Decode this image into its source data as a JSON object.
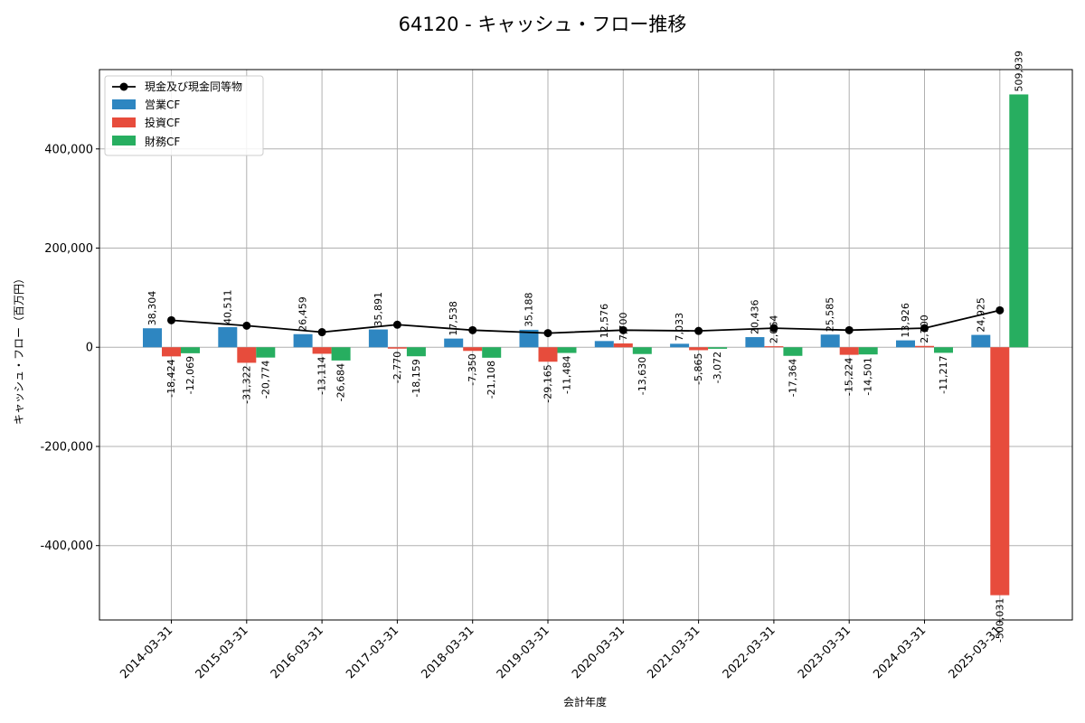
{
  "chart_data": {
    "type": "bar",
    "title": "64120 - キャッシュ・フロー推移",
    "xlabel": "会計年度",
    "ylabel": "キャッシュ・フロー（百万円）",
    "ylim": [
      -550000,
      560000
    ],
    "yticks": [
      -400000,
      -200000,
      0,
      200000,
      400000
    ],
    "ytick_labels": [
      "-400,000",
      "-200,000",
      "0",
      "200,000",
      "400,000"
    ],
    "grid": true,
    "legend_position": "top-left",
    "categories": [
      "2014-03-31",
      "2015-03-31",
      "2016-03-31",
      "2017-03-31",
      "2018-03-31",
      "2019-03-31",
      "2020-03-31",
      "2021-03-31",
      "2022-03-31",
      "2023-03-31",
      "2024-03-31",
      "2025-03-31"
    ],
    "series": [
      {
        "name": "営業CF",
        "kind": "bar",
        "color": "#2e86c1",
        "values": [
          38304,
          40511,
          26459,
          35891,
          17538,
          35188,
          12576,
          7033,
          20436,
          25585,
          13926,
          24925
        ],
        "labels": [
          "38,304",
          "40,511",
          "26,459",
          "35,891",
          "17,538",
          "35,188",
          "12,576",
          "7,033",
          "20,436",
          "25,585",
          "13,926",
          "24,925"
        ]
      },
      {
        "name": "投資CF",
        "kind": "bar",
        "color": "#e74c3c",
        "values": [
          -18424,
          -31322,
          -13114,
          -2770,
          -7350,
          -29165,
          7700,
          -5865,
          2064,
          -15224,
          2700,
          -500031
        ],
        "labels": [
          "-18,424",
          "-31,322",
          "-13,114",
          "-2,770",
          "-7,350",
          "-29,165",
          "7,700",
          "-5,865",
          "2,064",
          "-15,224",
          "2,700",
          "-500,031"
        ]
      },
      {
        "name": "財務CF",
        "kind": "bar",
        "color": "#27ae60",
        "values": [
          -12069,
          -20774,
          -26684,
          -18159,
          -21108,
          -11484,
          -13630,
          -3072,
          -17364,
          -14501,
          -11217,
          509939
        ],
        "labels": [
          "-12,069",
          "-20,774",
          "-26,684",
          "-18,159",
          "-21,108",
          "-11,484",
          "-13,630",
          "-3,072",
          "-17,364",
          "-14,501",
          "-11,217",
          "509,939"
        ]
      },
      {
        "name": "現金及び現金同等物",
        "kind": "line",
        "color": "#000000",
        "values": [
          54500,
          43500,
          30500,
          45500,
          34500,
          28500,
          34500,
          33000,
          38500,
          34500,
          38500,
          74500
        ]
      }
    ]
  }
}
